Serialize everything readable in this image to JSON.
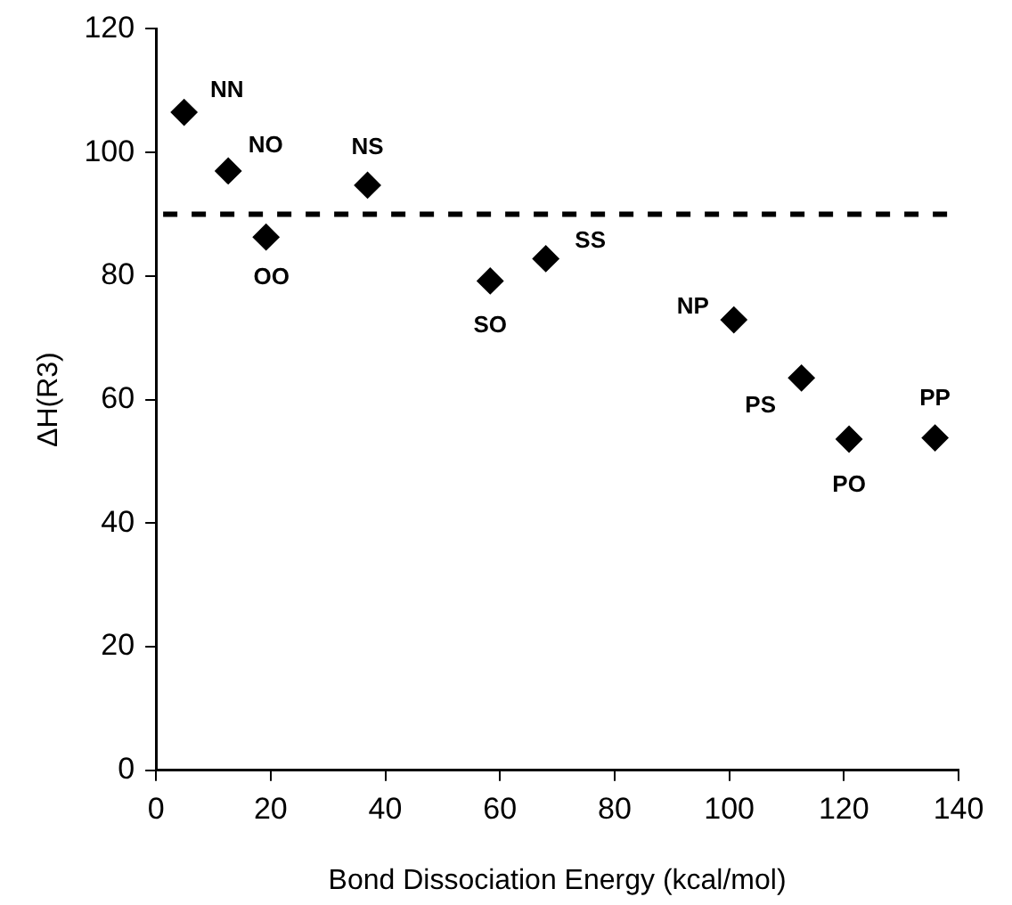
{
  "chart_data": {
    "type": "scatter",
    "xlabel": "Bond Dissociation Energy (kcal/mol)",
    "ylabel": "ΔH(R3)",
    "x": [
      4.9,
      12.6,
      19.2,
      36.9,
      58.3,
      68.0,
      100.8,
      112.6,
      120.9,
      135.9
    ],
    "series": [
      {
        "color": "#000000",
        "values": [
          106.5,
          97.0,
          86.3,
          94.7,
          79.2,
          82.8,
          72.9,
          63.5,
          53.6,
          53.8
        ]
      }
    ],
    "xlim": [
      0,
      140
    ],
    "xticks": [
      0,
      20,
      40,
      60,
      80,
      100,
      120,
      140
    ],
    "ylim": [
      0,
      120
    ],
    "yticks": [
      0,
      20,
      40,
      60,
      80,
      100,
      120
    ],
    "grid": false,
    "legend": false,
    "marker": "diamond",
    "ref_lines": [
      {
        "axis": "y",
        "value": 90,
        "color": "#000000",
        "line_style": "dashed"
      }
    ],
    "annotations": [
      {
        "text": "NN",
        "x": 4.9,
        "y": 106.5
      },
      {
        "text": "NO",
        "x": 12.6,
        "y": 97.0
      },
      {
        "text": "OO",
        "x": 19.2,
        "y": 86.3
      },
      {
        "text": "NS",
        "x": 36.9,
        "y": 94.7
      },
      {
        "text": "SO",
        "x": 58.3,
        "y": 79.2
      },
      {
        "text": "SS",
        "x": 68.0,
        "y": 82.8
      },
      {
        "text": "NP",
        "x": 100.8,
        "y": 72.9
      },
      {
        "text": "PS",
        "x": 112.6,
        "y": 63.5
      },
      {
        "text": "PO",
        "x": 120.9,
        "y": 53.6
      },
      {
        "text": "PP",
        "x": 135.9,
        "y": 53.8
      }
    ]
  }
}
